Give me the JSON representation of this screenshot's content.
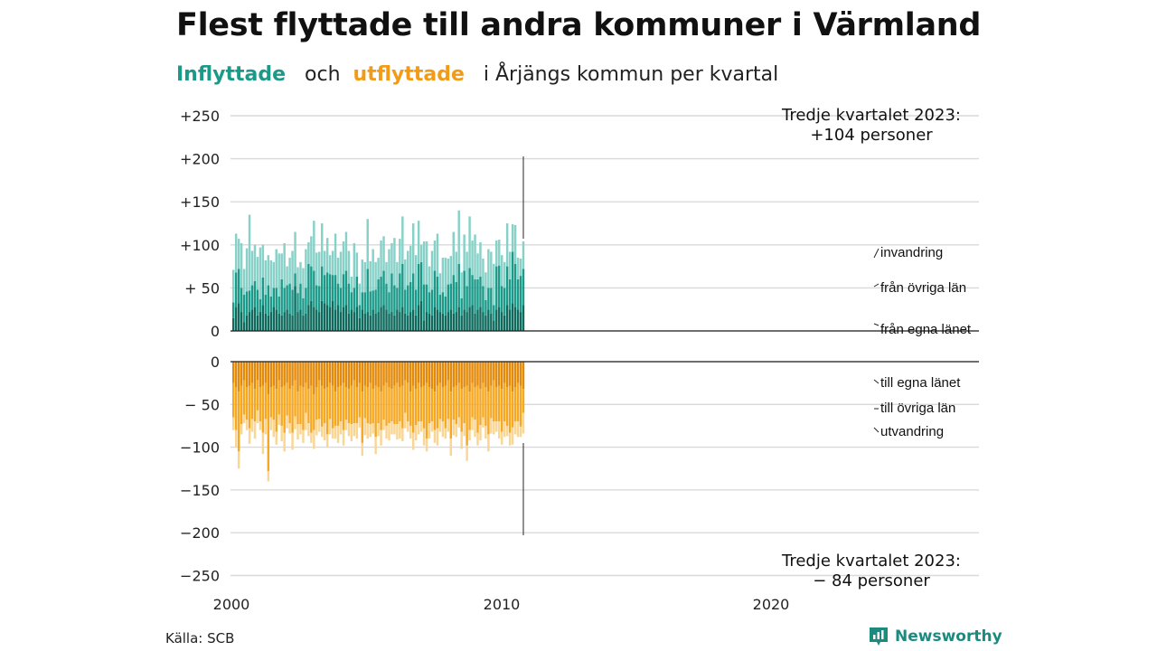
{
  "title": "Flest flyttade till andra kommuner i Värmland",
  "subtitle": {
    "part1": "Inflyttade",
    "part2": "och",
    "part3": "utflyttade",
    "part4": "i Årjängs kommun per kvartal"
  },
  "source": "Källa: SCB",
  "brand": "Newsworthy",
  "colors": {
    "in_local": "#0e6a5d",
    "in_other": "#1b9a8a",
    "in_immig": "#88d1c8",
    "out_local": "#e38a0a",
    "out_other": "#f6a823",
    "out_emig": "#fad695",
    "grid": "#d9d9d9"
  },
  "chart_data": {
    "type": "bar",
    "subtype": "stacked, diverging (in above, out below)",
    "x_ticks": [
      "2000",
      "2010",
      "2020"
    ],
    "y_ticks_upper": [
      "+250",
      "+200",
      "+150",
      "+100",
      "+ 50",
      "0"
    ],
    "y_ticks_lower": [
      "0",
      "− 50",
      "−100",
      "−150",
      "−200",
      "−250"
    ],
    "ylim_upper": [
      0,
      250
    ],
    "ylim_lower": [
      -250,
      0
    ],
    "grid": true,
    "annotation_top": [
      "Tredje kvartalet 2023:",
      "+104 personer"
    ],
    "annotation_bottom": [
      "Tredje kvartalet 2023:",
      "− 84 personer"
    ],
    "legend_in": [
      "invandring",
      "från övriga län",
      "från egna länet"
    ],
    "legend_out": [
      "till egna länet",
      "till övriga län",
      "utvandring"
    ],
    "series": [
      {
        "name": "från egna länet",
        "group": "in",
        "values": [
          15,
          28,
          32,
          22,
          10,
          18,
          22,
          25,
          28,
          18,
          22,
          30,
          20,
          18,
          22,
          28,
          25,
          20,
          18,
          22,
          25,
          20,
          18,
          52,
          22,
          25,
          18,
          20,
          30,
          35,
          28,
          25,
          22,
          35,
          32,
          30,
          28,
          35,
          25,
          30,
          22,
          28,
          30,
          20,
          25,
          22,
          28,
          15,
          25,
          20,
          22,
          18,
          25,
          20,
          22,
          28,
          30,
          25,
          20,
          22,
          18,
          25,
          22,
          28,
          20,
          18,
          22,
          25,
          18,
          30,
          35,
          12,
          22,
          20,
          18,
          28,
          25,
          22,
          20,
          18,
          22,
          25,
          20,
          22,
          28,
          18,
          25,
          22,
          28,
          30,
          20,
          25,
          28,
          22,
          18,
          25,
          20,
          12,
          25,
          28,
          22,
          18,
          30,
          25,
          32,
          28,
          25,
          22,
          30
        ]
      },
      {
        "name": "från övriga län",
        "group": "in",
        "values": [
          18,
          40,
          40,
          28,
          32,
          28,
          25,
          28,
          30,
          30,
          15,
          32,
          22,
          35,
          18,
          22,
          25,
          20,
          42,
          28,
          28,
          35,
          30,
          15,
          22,
          30,
          20,
          30,
          48,
          40,
          42,
          28,
          30,
          40,
          33,
          38,
          38,
          30,
          40,
          25,
          28,
          38,
          40,
          35,
          20,
          28,
          35,
          15,
          20,
          25,
          50,
          28,
          22,
          28,
          38,
          35,
          40,
          30,
          25,
          45,
          35,
          25,
          45,
          50,
          28,
          35,
          35,
          42,
          30,
          48,
          45,
          42,
          32,
          25,
          30,
          42,
          38,
          20,
          25,
          22,
          32,
          30,
          45,
          35,
          50,
          20,
          45,
          30,
          45,
          35,
          40,
          35,
          35,
          30,
          18,
          25,
          30,
          18,
          50,
          48,
          30,
          32,
          45,
          35,
          60,
          50,
          35,
          42,
          42
        ]
      },
      {
        "name": "invandring",
        "group": "in",
        "values": [
          38,
          45,
          35,
          52,
          30,
          50,
          88,
          40,
          42,
          38,
          60,
          38,
          40,
          35,
          42,
          30,
          45,
          50,
          30,
          52,
          22,
          30,
          45,
          48,
          30,
          25,
          35,
          45,
          25,
          35,
          58,
          38,
          40,
          50,
          28,
          40,
          22,
          28,
          48,
          30,
          42,
          38,
          45,
          38,
          18,
          52,
          28,
          25,
          38,
          35,
          58,
          35,
          48,
          32,
          25,
          42,
          40,
          25,
          50,
          35,
          55,
          30,
          40,
          55,
          35,
          40,
          42,
          58,
          40,
          50,
          20,
          50,
          50,
          30,
          45,
          35,
          50,
          25,
          40,
          45,
          30,
          32,
          50,
          35,
          62,
          30,
          42,
          40,
          60,
          40,
          52,
          30,
          40,
          32,
          32,
          45,
          42,
          48,
          30,
          30,
          36,
          30,
          50,
          32,
          32,
          45,
          25,
          20,
          32
        ]
      },
      {
        "name": "till egna länet",
        "group": "out",
        "values": [
          25,
          30,
          35,
          28,
          22,
          30,
          28,
          25,
          32,
          22,
          30,
          28,
          25,
          38,
          30,
          28,
          32,
          22,
          30,
          28,
          25,
          32,
          28,
          22,
          35,
          28,
          30,
          25,
          32,
          28,
          38,
          30,
          22,
          28,
          32,
          30,
          25,
          28,
          35,
          30,
          28,
          25,
          30,
          32,
          28,
          22,
          30,
          25,
          35,
          28,
          30,
          25,
          32,
          28,
          30,
          35,
          28,
          25,
          30,
          32,
          28,
          25,
          30,
          28,
          22,
          25,
          35,
          28,
          32,
          25,
          30,
          28,
          25,
          30,
          32,
          35,
          28,
          25,
          30,
          28,
          22,
          35,
          30,
          28,
          25,
          32,
          30,
          28,
          35,
          25,
          30,
          28,
          32,
          25,
          30,
          35,
          28,
          22,
          30,
          28,
          32,
          25,
          30,
          28,
          35,
          30,
          25,
          28,
          32
        ]
      },
      {
        "name": "till övriga län",
        "group": "out",
        "values": [
          40,
          50,
          70,
          45,
          40,
          38,
          50,
          42,
          38,
          35,
          40,
          55,
          42,
          90,
          35,
          40,
          50,
          40,
          45,
          55,
          38,
          40,
          55,
          42,
          38,
          45,
          50,
          35,
          40,
          55,
          42,
          38,
          45,
          48,
          40,
          55,
          42,
          50,
          40,
          45,
          42,
          55,
          38,
          40,
          45,
          50,
          42,
          40,
          60,
          38,
          42,
          48,
          40,
          60,
          42,
          45,
          40,
          50,
          42,
          38,
          45,
          48,
          40,
          50,
          38,
          45,
          40,
          55,
          42,
          45,
          40,
          50,
          65,
          42,
          38,
          45,
          50,
          42,
          40,
          50,
          45,
          55,
          38,
          45,
          40,
          50,
          42,
          70,
          45,
          40,
          38,
          55,
          42,
          40,
          45,
          50,
          38,
          48,
          40,
          42,
          50,
          45,
          45,
          55,
          42,
          40,
          45,
          48,
          28
        ]
      },
      {
        "name": "utvandring",
        "group": "out",
        "values": [
          15,
          20,
          20,
          12,
          10,
          12,
          18,
          15,
          20,
          15,
          10,
          25,
          18,
          12,
          15,
          20,
          15,
          12,
          18,
          22,
          15,
          12,
          20,
          15,
          18,
          12,
          15,
          20,
          15,
          12,
          22,
          18,
          15,
          12,
          20,
          15,
          18,
          12,
          15,
          20,
          15,
          18,
          12,
          15,
          20,
          15,
          18,
          12,
          15,
          20,
          18,
          15,
          12,
          20,
          15,
          18,
          12,
          15,
          20,
          15,
          12,
          18,
          20,
          15,
          18,
          12,
          15,
          20,
          18,
          15,
          12,
          20,
          15,
          18,
          12,
          15,
          20,
          15,
          18,
          12,
          15,
          20,
          18,
          15,
          12,
          20,
          15,
          18,
          12,
          15,
          20,
          15,
          18,
          12,
          15,
          20,
          18,
          15,
          12,
          20,
          15,
          18,
          12,
          15,
          20,
          15,
          18,
          12,
          24
        ]
      }
    ]
  }
}
